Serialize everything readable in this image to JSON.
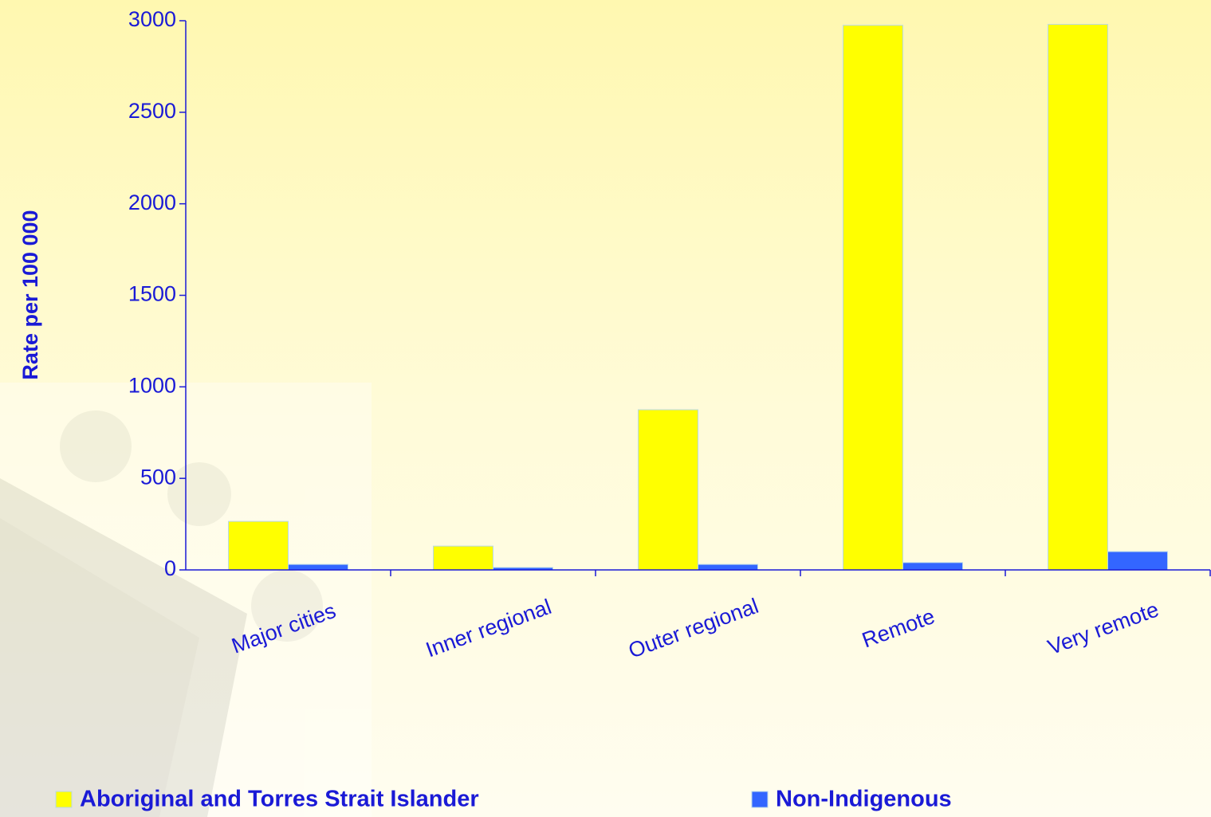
{
  "chart_data": {
    "type": "bar",
    "y_label": "Rate per 100 000",
    "categories": [
      "Major cities",
      "Inner regional",
      "Outer regional",
      "Remote",
      "Very remote"
    ],
    "series": [
      {
        "name": "Aboriginal and Torres Strait Islander",
        "color": "#ffff00",
        "values": [
          265,
          130,
          875,
          2975,
          2980
        ]
      },
      {
        "name": "Non-Indigenous",
        "color": "#3366ff",
        "values": [
          30,
          13,
          30,
          40,
          100
        ]
      }
    ],
    "ylim": [
      0,
      3000
    ],
    "yticks": [
      0,
      500,
      1000,
      1500,
      2000,
      2500,
      3000
    ]
  }
}
